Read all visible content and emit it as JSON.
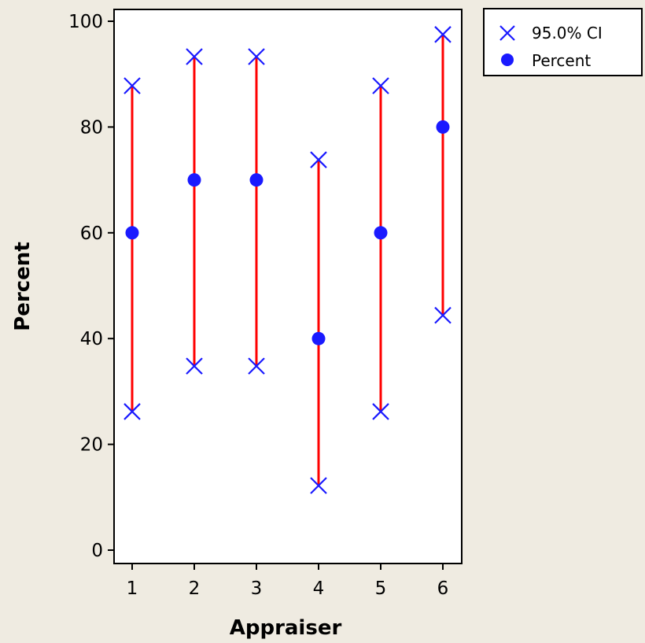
{
  "chart_data": {
    "type": "interval",
    "xlabel": "Appraiser",
    "ylabel": "Percent",
    "categories": [
      "1",
      "2",
      "3",
      "4",
      "5",
      "6"
    ],
    "x": [
      1,
      2,
      3,
      4,
      5,
      6
    ],
    "ylim": [
      0,
      100
    ],
    "yticks": [
      "0",
      "20",
      "40",
      "60",
      "80",
      "100"
    ],
    "percent": [
      60,
      70,
      70,
      40,
      60,
      80
    ],
    "ci_lower": [
      26.2,
      34.8,
      34.8,
      12.2,
      26.2,
      44.4
    ],
    "ci_upper": [
      87.8,
      93.3,
      93.3,
      73.8,
      87.8,
      97.5
    ],
    "legend": {
      "placement": "top-right",
      "items": [
        {
          "label": "95.0% CI",
          "marker": "x"
        },
        {
          "label": "Percent",
          "marker": "circle"
        }
      ]
    },
    "colors": {
      "marker": "#1a1aff",
      "interval_line": "#ff0000",
      "plot_background": "#ffffff",
      "page_background": "#efebe1"
    }
  }
}
